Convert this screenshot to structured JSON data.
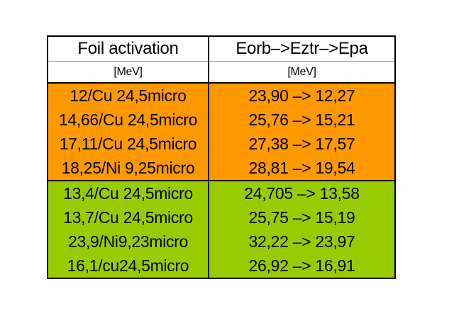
{
  "colors": {
    "orange": "#FF9900",
    "green": "#99CC00",
    "header_bg": "#FFFFFF"
  },
  "table": {
    "headers": [
      "Foil activation",
      "Eorb–>Eztr–>Epa"
    ],
    "units": [
      "[MeV]",
      "[MeV]"
    ],
    "groups": [
      {
        "color": "#FF9900",
        "rows": [
          [
            "12/Cu 24,5micro",
            "23,90 –> 12,27"
          ],
          [
            "14,66/Cu 24,5micro",
            "25,76 –> 15,21"
          ],
          [
            "17,11/Cu 24,5micro",
            "27,38 –> 17,57"
          ],
          [
            "18,25/Ni 9,25micro",
            "28,81 –> 19,54"
          ]
        ]
      },
      {
        "color": "#99CC00",
        "rows": [
          [
            "13,4/Cu 24,5micro",
            "24,705 –> 13,58"
          ],
          [
            "13,7/Cu 24,5micro",
            "25,75 –> 15,19"
          ],
          [
            "23,9/Ni9,23micro",
            "32,22 –> 23,97"
          ],
          [
            "16,1/cu24,5micro",
            "26,92 –> 16,91"
          ]
        ]
      }
    ]
  }
}
